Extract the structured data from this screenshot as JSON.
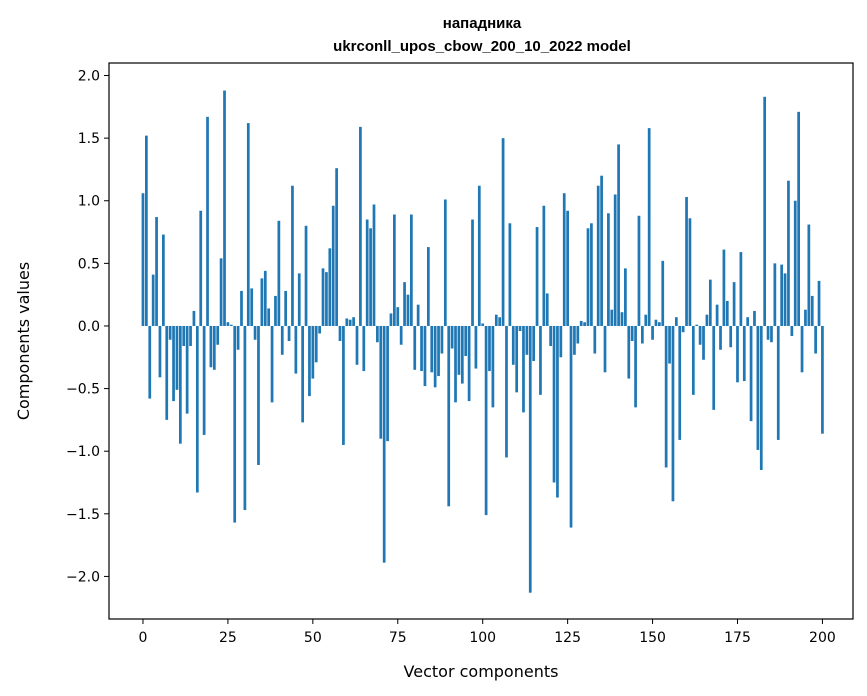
{
  "chart_data": {
    "type": "bar",
    "title_line1": "нападника",
    "title_line2": "ukrconll_upos_cbow_200_10_2022 model",
    "xlabel": "Vector components",
    "ylabel": "Components values",
    "xlim": [
      -10,
      209
    ],
    "ylim": [
      -2.34,
      2.1
    ],
    "xticks": [
      0,
      25,
      50,
      75,
      100,
      125,
      150,
      175,
      200
    ],
    "yticks": [
      -2.0,
      -1.5,
      -1.0,
      -0.5,
      0.0,
      0.5,
      1.0,
      1.5,
      2.0
    ],
    "ytick_labels": [
      "−2.0",
      "−1.5",
      "−1.0",
      "−0.5",
      "0.0",
      "0.5",
      "1.0",
      "1.5",
      "2.0"
    ],
    "bar_color": "#1f77b4",
    "values": [
      1.06,
      1.52,
      -0.58,
      0.41,
      0.87,
      -0.41,
      0.73,
      -0.75,
      -0.11,
      -0.6,
      -0.51,
      -0.94,
      -0.16,
      -0.7,
      -0.16,
      0.12,
      -1.33,
      0.92,
      -0.87,
      1.67,
      -0.33,
      -0.35,
      -0.15,
      0.54,
      1.88,
      0.03,
      0.01,
      -1.57,
      -0.19,
      0.28,
      -1.47,
      1.62,
      0.3,
      -0.11,
      -1.11,
      0.38,
      0.44,
      0.14,
      -0.61,
      0.24,
      0.84,
      -0.23,
      0.28,
      -0.12,
      1.12,
      -0.38,
      0.42,
      -0.77,
      0.8,
      -0.56,
      -0.42,
      -0.29,
      -0.06,
      0.46,
      0.43,
      0.62,
      0.96,
      1.26,
      -0.12,
      -0.95,
      0.06,
      0.05,
      0.07,
      -0.31,
      1.59,
      -0.36,
      0.85,
      0.78,
      0.97,
      -0.13,
      -0.9,
      -1.89,
      -0.92,
      0.1,
      0.89,
      0.15,
      -0.15,
      0.35,
      0.25,
      0.89,
      -0.35,
      0.17,
      -0.36,
      -0.48,
      0.63,
      -0.37,
      -0.49,
      -0.4,
      -0.22,
      1.01,
      -1.44,
      -0.18,
      -0.61,
      -0.39,
      -0.46,
      -0.24,
      -0.6,
      0.85,
      -0.34,
      1.12,
      0.02,
      -1.51,
      -0.36,
      -0.65,
      0.09,
      0.07,
      1.5,
      -1.05,
      0.82,
      -0.31,
      -0.53,
      -0.04,
      -0.69,
      -0.23,
      -2.13,
      -0.28,
      0.79,
      -0.55,
      0.96,
      0.26,
      -0.16,
      -1.25,
      -1.37,
      -0.25,
      1.06,
      0.92,
      -1.61,
      -0.23,
      -0.14,
      0.04,
      0.03,
      0.78,
      0.82,
      -0.22,
      1.12,
      1.2,
      -0.37,
      0.9,
      0.13,
      1.05,
      1.45,
      0.11,
      0.46,
      -0.42,
      -0.12,
      -0.65,
      0.88,
      -0.14,
      0.09,
      1.58,
      -0.11,
      0.05,
      0.03,
      0.52,
      -1.13,
      -0.3,
      -1.4,
      0.07,
      -0.91,
      -0.05,
      1.03,
      0.86,
      -0.55,
      0.01,
      -0.15,
      -0.27,
      0.09,
      0.37,
      -0.67,
      0.17,
      -0.19,
      0.61,
      0.2,
      -0.17,
      0.35,
      -0.45,
      0.59,
      -0.44,
      0.07,
      -0.76,
      0.12,
      -0.99,
      -1.15,
      1.83,
      -0.11,
      -0.13,
      0.5,
      -0.91,
      0.49,
      0.42,
      1.16,
      -0.08,
      1.0,
      1.71,
      -0.37,
      0.13,
      0.81,
      0.24,
      -0.22,
      0.36,
      -0.86
    ]
  }
}
